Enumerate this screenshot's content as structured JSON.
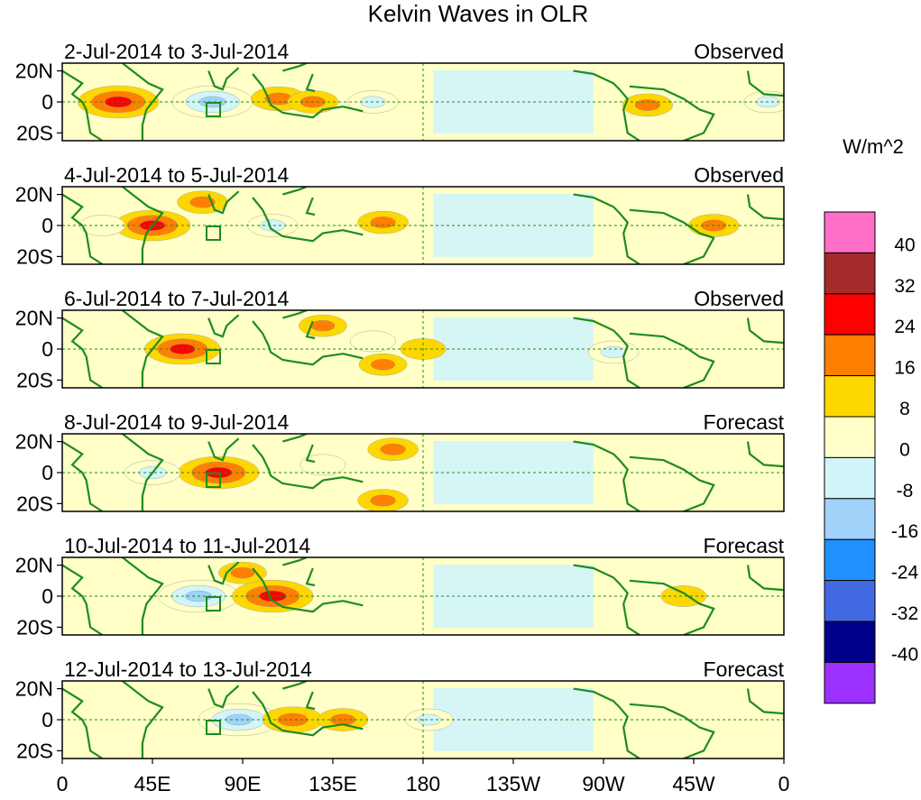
{
  "chart_data": {
    "type": "heatmap",
    "title": "Kelvin Waves in OLR",
    "units_label": "W/m^2",
    "lat_ticks": [
      "20N",
      "0",
      "20S"
    ],
    "lon_ticks": [
      "0",
      "45E",
      "90E",
      "135E",
      "180",
      "135W",
      "90W",
      "45W",
      "0"
    ],
    "lon_range": [
      0,
      360
    ],
    "lat_range": [
      -25,
      25
    ],
    "colorbar": {
      "colors": [
        "#ff6ec7",
        "#a52a2a",
        "#ff0000",
        "#ff7f00",
        "#ffd700",
        "#ffffc8",
        "#d2f5fa",
        "#a0d2fa",
        "#1e90ff",
        "#4169e1",
        "#00008b",
        "#9b30ff"
      ],
      "labels": [
        "40",
        "32",
        "24",
        "16",
        "8",
        "0",
        "-8",
        "-16",
        "-24",
        "-32",
        "-40"
      ]
    },
    "panels": [
      {
        "period": "2-Jul-2014 to 3-Jul-2014",
        "status": "Observed",
        "anomalies": [
          {
            "lon": 28,
            "lat": 0,
            "value": 22
          },
          {
            "lon": 75,
            "lat": 0,
            "value": -22
          },
          {
            "lon": 108,
            "lat": 2,
            "value": 12
          },
          {
            "lon": 125,
            "lat": 0,
            "value": 10
          },
          {
            "lon": 155,
            "lat": 0,
            "value": -10
          },
          {
            "lon": 292,
            "lat": -2,
            "value": 10
          },
          {
            "lon": 352,
            "lat": 0,
            "value": -9
          }
        ]
      },
      {
        "period": "4-Jul-2014 to 5-Jul-2014",
        "status": "Observed",
        "anomalies": [
          {
            "lon": 45,
            "lat": 0,
            "value": 20
          },
          {
            "lon": 105,
            "lat": 0,
            "value": -10
          },
          {
            "lon": 70,
            "lat": 15,
            "value": 10
          },
          {
            "lon": 160,
            "lat": 2,
            "value": 10
          },
          {
            "lon": 325,
            "lat": 0,
            "value": 10
          },
          {
            "lon": 20,
            "lat": 0,
            "value": -8
          }
        ]
      },
      {
        "period": "6-Jul-2014 to 7-Jul-2014",
        "status": "Observed",
        "anomalies": [
          {
            "lon": 60,
            "lat": 0,
            "value": 20
          },
          {
            "lon": 130,
            "lat": 15,
            "value": 9
          },
          {
            "lon": 160,
            "lat": -10,
            "value": 9
          },
          {
            "lon": 275,
            "lat": -2,
            "value": -10
          },
          {
            "lon": 155,
            "lat": 5,
            "value": -8
          },
          {
            "lon": 180,
            "lat": 0,
            "value": 8
          }
        ]
      },
      {
        "period": "8-Jul-2014 to 9-Jul-2014",
        "status": "Forecast",
        "anomalies": [
          {
            "lon": 78,
            "lat": 0,
            "value": 22
          },
          {
            "lon": 45,
            "lat": 0,
            "value": -12
          },
          {
            "lon": 165,
            "lat": 15,
            "value": 10
          },
          {
            "lon": 160,
            "lat": -18,
            "value": 10
          },
          {
            "lon": 130,
            "lat": 5,
            "value": -8
          }
        ]
      },
      {
        "period": "10-Jul-2014 to 11-Jul-2014",
        "status": "Forecast",
        "anomalies": [
          {
            "lon": 68,
            "lat": 0,
            "value": -22
          },
          {
            "lon": 105,
            "lat": 0,
            "value": 22
          },
          {
            "lon": 90,
            "lat": 15,
            "value": 9
          },
          {
            "lon": 310,
            "lat": 0,
            "value": 8
          }
        ]
      },
      {
        "period": "12-Jul-2014 to 13-Jul-2014",
        "status": "Forecast",
        "anomalies": [
          {
            "lon": 88,
            "lat": 0,
            "value": -22
          },
          {
            "lon": 115,
            "lat": 0,
            "value": 14
          },
          {
            "lon": 140,
            "lat": 0,
            "value": 10
          },
          {
            "lon": 183,
            "lat": 0,
            "value": -9
          }
        ]
      }
    ]
  }
}
